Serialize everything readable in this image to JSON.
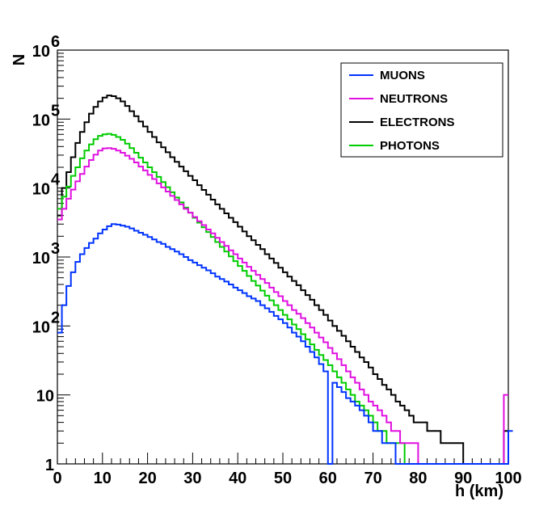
{
  "chart_data": {
    "type": "line",
    "style": "step-histogram",
    "title": "",
    "xlabel": "h (km)",
    "ylabel": "N",
    "yscale": "log",
    "xlim": [
      0,
      100
    ],
    "ylim": [
      1,
      1000000
    ],
    "x_ticks": [
      {
        "value": 0,
        "label": "0"
      },
      {
        "value": 10,
        "label": "10"
      },
      {
        "value": 20,
        "label": "20"
      },
      {
        "value": 30,
        "label": "30"
      },
      {
        "value": 40,
        "label": "40"
      },
      {
        "value": 50,
        "label": "50"
      },
      {
        "value": 60,
        "label": "60"
      },
      {
        "value": 70,
        "label": "70"
      },
      {
        "value": 80,
        "label": "80"
      },
      {
        "value": 90,
        "label": "90"
      },
      {
        "value": 100,
        "label": "100"
      }
    ],
    "y_ticks": [
      {
        "value": 1,
        "base": "1",
        "exp": ""
      },
      {
        "value": 10,
        "base": "10",
        "exp": ""
      },
      {
        "value": 100,
        "base": "10",
        "exp": "2"
      },
      {
        "value": 1000,
        "base": "10",
        "exp": "3"
      },
      {
        "value": 10000,
        "base": "10",
        "exp": "4"
      },
      {
        "value": 100000,
        "base": "10",
        "exp": "5"
      },
      {
        "value": 1000000,
        "base": "10",
        "exp": "6"
      }
    ],
    "bin_width_km": 1,
    "legend_position": "top-right",
    "series": [
      {
        "name": "MUONS",
        "color": "#0033ff",
        "values": [
          80,
          200,
          380,
          600,
          850,
          1100,
          1350,
          1600,
          1850,
          2200,
          2500,
          2800,
          3000,
          2950,
          2850,
          2750,
          2600,
          2400,
          2250,
          2100,
          1950,
          1800,
          1650,
          1550,
          1400,
          1300,
          1200,
          1100,
          1000,
          900,
          830,
          760,
          700,
          640,
          580,
          520,
          480,
          440,
          400,
          360,
          330,
          300,
          270,
          250,
          230,
          200,
          180,
          160,
          140,
          125,
          110,
          95,
          80,
          70,
          60,
          50,
          42,
          35,
          28,
          22,
          0,
          15,
          13,
          11,
          9,
          8,
          7,
          6,
          5,
          4,
          3,
          3,
          2,
          2,
          2,
          1,
          1,
          1,
          1,
          1,
          1,
          1,
          1,
          1,
          1,
          1,
          1,
          1,
          1,
          1,
          1,
          0,
          0,
          0,
          0,
          0,
          0,
          0,
          0,
          0,
          3
        ]
      },
      {
        "name": "NEUTRONS",
        "color": "#e010e0",
        "values": [
          3500,
          5000,
          7000,
          9500,
          12500,
          16000,
          20500,
          25500,
          30500,
          35000,
          37500,
          38000,
          37000,
          35000,
          32500,
          29500,
          26500,
          23500,
          20500,
          18000,
          15500,
          13500,
          11700,
          10200,
          8900,
          7700,
          6700,
          5800,
          5000,
          4400,
          3800,
          3300,
          2900,
          2500,
          2200,
          1900,
          1650,
          1450,
          1250,
          1100,
          950,
          830,
          720,
          630,
          550,
          480,
          420,
          360,
          310,
          270,
          230,
          200,
          170,
          150,
          130,
          110,
          95,
          80,
          68,
          58,
          48,
          40,
          33,
          27,
          22,
          18,
          15,
          12,
          10,
          8,
          7,
          6,
          5,
          4,
          3,
          3,
          2,
          2,
          2,
          2,
          1,
          1,
          1,
          1,
          1,
          1,
          1,
          1,
          1,
          1,
          1,
          0,
          0,
          0,
          0,
          0,
          0,
          0,
          0,
          10
        ]
      },
      {
        "name": "ELECTRONS",
        "color": "#000000",
        "values": [
          4000,
          10000,
          17000,
          28000,
          45000,
          65000,
          90000,
          120000,
          150000,
          180000,
          205000,
          220000,
          215000,
          200000,
          180000,
          155000,
          130000,
          110000,
          92000,
          78000,
          65000,
          55000,
          46000,
          39000,
          33000,
          28000,
          24000,
          20500,
          17500,
          15000,
          13000,
          11000,
          9400,
          8000,
          6800,
          5800,
          5000,
          4300,
          3700,
          3200,
          2750,
          2350,
          2000,
          1750,
          1500,
          1300,
          1100,
          950,
          820,
          700,
          600,
          520,
          450,
          390,
          330,
          280,
          240,
          200,
          170,
          145,
          120,
          100,
          85,
          72,
          60,
          50,
          42,
          35,
          30,
          25,
          20,
          17,
          14,
          12,
          10,
          8,
          7,
          6,
          5,
          4,
          4,
          4,
          3,
          3,
          3,
          2,
          2,
          2,
          2,
          2,
          1,
          1,
          1,
          1,
          1,
          1,
          1,
          1,
          1,
          3
        ]
      },
      {
        "name": "PHOTONS",
        "color": "#00cc00",
        "values": [
          5000,
          7500,
          10500,
          15000,
          20000,
          27000,
          35000,
          43000,
          51000,
          57000,
          60000,
          61000,
          59000,
          55000,
          50000,
          44000,
          38000,
          32500,
          27500,
          23500,
          20000,
          17000,
          14500,
          12200,
          10300,
          8700,
          7300,
          6200,
          5200,
          4400,
          3700,
          3150,
          2700,
          2300,
          1950,
          1650,
          1400,
          1200,
          1020,
          870,
          740,
          630,
          530,
          450,
          385,
          325,
          275,
          235,
          200,
          170,
          145,
          125,
          105,
          90,
          76,
          64,
          54,
          45,
          38,
          32,
          27,
          22,
          18,
          15,
          12,
          10,
          8,
          7,
          6,
          5,
          4,
          3,
          3,
          2,
          2,
          2,
          2,
          1,
          1,
          1,
          1,
          1,
          1,
          1,
          1,
          1,
          1,
          1,
          1,
          1,
          0,
          0,
          0,
          0,
          0,
          0,
          0,
          0,
          0,
          0
        ]
      }
    ]
  }
}
